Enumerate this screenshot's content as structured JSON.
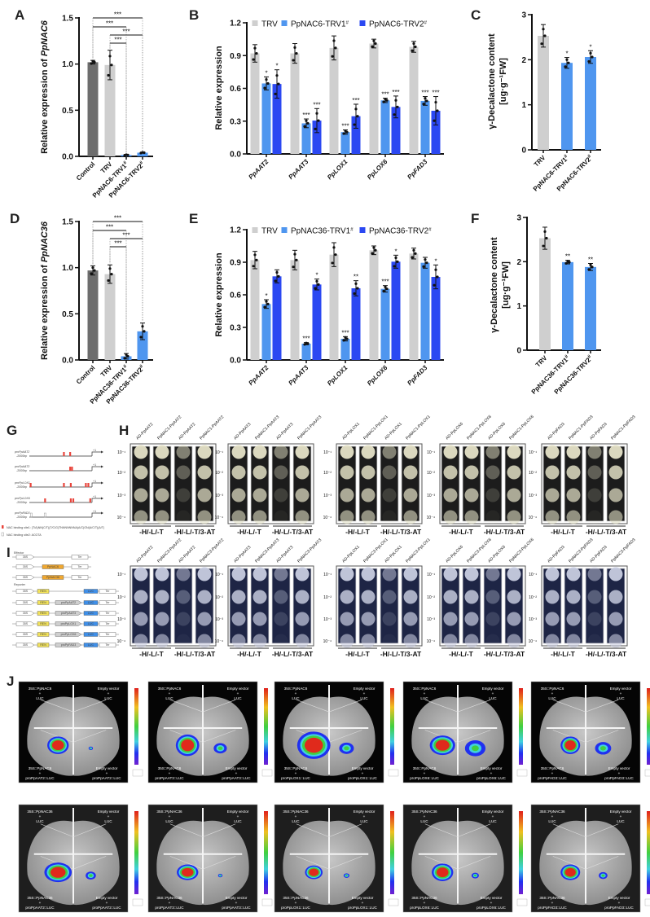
{
  "panel_labels": {
    "A": "A",
    "B": "B",
    "C": "C",
    "D": "D",
    "E": "E",
    "F": "F",
    "G": "G",
    "H": "H",
    "I": "I",
    "J": "J"
  },
  "colors": {
    "control": "#6d6d6d",
    "trv": "#cfcfcf",
    "trv1": "#4f96ef",
    "trv2": "#2b48f2",
    "site1": "#e8453c",
    "site2": "#999999",
    "effector": "#f0a830",
    "ren": "#f3e35a",
    "luc": "#3f8fe8",
    "promoter": "#cfcfcf"
  },
  "chart_data": [
    {
      "id": "A",
      "type": "bar",
      "ylabel": "Relative expression of ",
      "ylabel_italic": "PpNAC6",
      "ylim": [
        0,
        1.5
      ],
      "yticks": [
        0,
        0.5,
        1.0,
        1.5
      ],
      "ytick_labels": [
        "0.0",
        "0.5",
        "1.0",
        "1.5"
      ],
      "categories": [
        "Control",
        "TRV",
        "PpNAC6-TRV1#",
        "PpNAC6-TRV2#"
      ],
      "values": [
        1.02,
        0.99,
        0.015,
        0.04
      ],
      "errors": [
        0.02,
        0.16,
        0.005,
        0.005
      ],
      "bar_colors": [
        "#6d6d6d",
        "#cfcfcf",
        "#4f96ef",
        "#4f96ef"
      ],
      "comparisons": [
        {
          "from": 0,
          "to": 3,
          "label": "***"
        },
        {
          "from": 0,
          "to": 2,
          "label": "***"
        },
        {
          "from": 1,
          "to": 3,
          "label": "***"
        },
        {
          "from": 1,
          "to": 2,
          "label": "***"
        }
      ]
    },
    {
      "id": "B",
      "type": "bar",
      "ylabel": "Relative expression",
      "ylim": [
        0,
        1.2
      ],
      "yticks": [
        0,
        0.3,
        0.6,
        0.9,
        1.2
      ],
      "ytick_labels": [
        "0.0",
        "0.3",
        "0.6",
        "0.9",
        "1.2"
      ],
      "categories": [
        "PpAAT2",
        "PpAAT3",
        "PpLOX1",
        "PpLOX6",
        "PpFAD3"
      ],
      "legend": "top",
      "series": [
        {
          "name": "TRV",
          "color": "#cfcfcf",
          "values": [
            0.92,
            0.92,
            0.97,
            1.01,
            0.98
          ],
          "errors": [
            0.08,
            0.09,
            0.11,
            0.04,
            0.05
          ],
          "sig": [
            "",
            "",
            "",
            "",
            ""
          ]
        },
        {
          "name": "PpNAC6-TRV1#",
          "color": "#4f96ef",
          "values": [
            0.645,
            0.28,
            0.2,
            0.49,
            0.485
          ],
          "errors": [
            0.06,
            0.04,
            0.02,
            0.02,
            0.04
          ],
          "sig": [
            "*",
            "***",
            "***",
            "***",
            "***"
          ]
        },
        {
          "name": "PpNAC6-TRV2#",
          "color": "#2b48f2",
          "values": [
            0.64,
            0.305,
            0.345,
            0.43,
            0.395
          ],
          "errors": [
            0.13,
            0.11,
            0.11,
            0.1,
            0.13
          ],
          "sig": [
            "*",
            "***",
            "***",
            "***",
            "***"
          ]
        }
      ]
    },
    {
      "id": "C",
      "type": "bar",
      "ylabel": "γ-Decalactone content",
      "ylabel2": "[ug·g⁻¹FW]",
      "ylim": [
        0,
        3
      ],
      "yticks": [
        0,
        1,
        2,
        3
      ],
      "ytick_labels": [
        "0",
        "1",
        "2",
        "3"
      ],
      "categories": [
        "TRV",
        "PpNAC6-TRV1#",
        "PpNAC6-TRV2#"
      ],
      "values": [
        2.53,
        1.93,
        2.06
      ],
      "errors": [
        0.25,
        0.12,
        0.14
      ],
      "sig": [
        "",
        "*",
        "*"
      ],
      "bar_colors": [
        "#cfcfcf",
        "#4f96ef",
        "#4f96ef"
      ]
    },
    {
      "id": "D",
      "type": "bar",
      "ylabel": "Relative expression of ",
      "ylabel_italic": "PpNAC36",
      "ylim": [
        0,
        1.5
      ],
      "yticks": [
        0,
        0.5,
        1.0,
        1.5
      ],
      "ytick_labels": [
        "0.0",
        "0.5",
        "1.0",
        "1.5"
      ],
      "categories": [
        "Control",
        "TRV",
        "PpNAC36-TRV1#",
        "PpNAC36-TRV2#"
      ],
      "values": [
        0.97,
        0.93,
        0.04,
        0.31
      ],
      "errors": [
        0.05,
        0.1,
        0.03,
        0.09
      ],
      "bar_colors": [
        "#6d6d6d",
        "#cfcfcf",
        "#4f96ef",
        "#4f96ef"
      ],
      "comparisons": [
        {
          "from": 0,
          "to": 3,
          "label": "***"
        },
        {
          "from": 0,
          "to": 2,
          "label": "***"
        },
        {
          "from": 1,
          "to": 3,
          "label": "***"
        },
        {
          "from": 1,
          "to": 2,
          "label": "***"
        }
      ]
    },
    {
      "id": "E",
      "type": "bar",
      "ylabel": "Relative expression",
      "ylim": [
        0,
        1.2
      ],
      "yticks": [
        0,
        0.3,
        0.6,
        0.9,
        1.2
      ],
      "ytick_labels": [
        "0.0",
        "0.3",
        "0.6",
        "0.9",
        "1.2"
      ],
      "categories": [
        "PpAAT2",
        "PpAAT3",
        "PpLOX1",
        "PpLOX6",
        "PpFAD3"
      ],
      "legend": "top",
      "series": [
        {
          "name": "TRV",
          "color": "#cfcfcf",
          "values": [
            0.92,
            0.92,
            0.97,
            1.01,
            0.98
          ],
          "errors": [
            0.08,
            0.09,
            0.11,
            0.04,
            0.05
          ],
          "sig": [
            "",
            "",
            "",
            "",
            ""
          ]
        },
        {
          "name": "PpNAC36-TRV1#",
          "color": "#4f96ef",
          "values": [
            0.515,
            0.15,
            0.195,
            0.655,
            0.895
          ],
          "errors": [
            0.04,
            0.01,
            0.02,
            0.03,
            0.05
          ],
          "sig": [
            "*",
            "***",
            "***",
            "***",
            ""
          ]
        },
        {
          "name": "PpNAC36-TRV2#",
          "color": "#2b48f2",
          "values": [
            0.77,
            0.695,
            0.66,
            0.905,
            0.765
          ],
          "errors": [
            0.06,
            0.05,
            0.07,
            0.06,
            0.11
          ],
          "sig": [
            "",
            "*",
            "**",
            "*",
            "*"
          ]
        }
      ]
    },
    {
      "id": "F",
      "type": "bar",
      "ylabel": "γ-Decalactone content",
      "ylabel2": "[ug·g⁻¹FW]",
      "ylim": [
        0,
        3
      ],
      "yticks": [
        0,
        1,
        2,
        3
      ],
      "ytick_labels": [
        "0",
        "1",
        "2",
        "3"
      ],
      "categories": [
        "TRV",
        "PpNAC36-TRV1#",
        "PpNAC36-TRV2#"
      ],
      "values": [
        2.53,
        1.99,
        1.88
      ],
      "errors": [
        0.25,
        0.04,
        0.08
      ],
      "sig": [
        "",
        "**",
        "**"
      ],
      "bar_colors": [
        "#cfcfcf",
        "#4f96ef",
        "#4f96ef"
      ]
    }
  ],
  "G": {
    "constructs": [
      {
        "name": "proPpAAT2",
        "length": "-2000bp",
        "site1": [
          0.55,
          0.65
        ],
        "site2": []
      },
      {
        "name": "proPpAAT3",
        "length": "-2000bp",
        "site1": [
          0.65,
          0.68
        ],
        "site2": []
      },
      {
        "name": "proPpLOX1",
        "length": "-2000bp",
        "site1": [
          0.02,
          0.55,
          0.66,
          0.9,
          0.94
        ],
        "site2": []
      },
      {
        "name": "proPpLOX6",
        "length": "-2000bp",
        "site1": [
          0.25,
          0.66,
          0.7,
          0.97
        ],
        "site2": []
      },
      {
        "name": "proPpFAD3",
        "length": "-2000bp",
        "site1": [],
        "site2": [
          0.03,
          0.25
        ]
      }
    ],
    "tss": "+1",
    "legend": [
      "NAC binding site1: (T/A)NN(C/T)(T/C/G)TNNNNNNNA(A/C)GN(A/C/T)(A/T)",
      "NAC binding site2: ACGTA"
    ]
  },
  "H": {
    "dilutions": [
      "10⁻¹",
      "10⁻²",
      "10⁻³",
      "10⁻⁴"
    ],
    "media": [
      "-H/-L/-T",
      "-H/-L/-T/3-AT"
    ],
    "rows": [
      {
        "genes": [
          [
            "AD-PpAAT2",
            "PpNAC1-PpAAT2",
            "AD-PpAAT2",
            "PpNAC1-PpAAT2"
          ],
          [
            "AD-PpAAT3",
            "PpNAC1-PpAAT3",
            "AD-PpAAT3",
            "PpNAC1-PpAAT3"
          ],
          [
            "AD-PpLOX1",
            "PpNAC1-PpLOX1",
            "AD-PpLOX1",
            "PpNAC1-PpLOX1"
          ],
          [
            "AD-PpLOX6",
            "PpNAC1-PpLOX6",
            "AD-PpLOX6",
            "PpNAC1-PpLOX6"
          ],
          [
            "AD-PpFAD3",
            "PpNAC1-PpFAD3",
            "AD-PpFAD3",
            "PpNAC1-PpFAD3"
          ]
        ]
      },
      {
        "genes": [
          [
            "AD-PpAAT2",
            "PpNAC3-PpAAT2",
            "AD-PpAAT2",
            "PpNAC3-PpAAT2"
          ],
          [
            "AD-PpAAT3",
            "PpNAC3-PpAAT3",
            "AD-PpAAT3",
            "PpNAC3-PpAAT3"
          ],
          [
            "AD-PpLOX1",
            "PpNAC3-PpLOX1",
            "AD-PpLOX1",
            "PpNAC3-PpLOX1"
          ],
          [
            "AD-PpLOX6",
            "PpNAC3-PpLOX6",
            "AD-PpLOX6",
            "PpNAC3-PpLOX6"
          ],
          [
            "AD-PpFAD3",
            "PpNAC3-PpFAD3",
            "AD-PpFAD3",
            "PpNAC3-PpFAD3"
          ]
        ]
      }
    ]
  },
  "I": {
    "effector_label": "Effector",
    "reporter_label": "Reporter",
    "effectors": [
      [
        "35S",
        "",
        "Ter"
      ],
      [
        "35S",
        "PpNAC6",
        "Ter"
      ],
      [
        "35S",
        "PpNAC36",
        "Ter"
      ]
    ],
    "reporters": [
      [
        "35S",
        "REN",
        "",
        "LUC",
        "Ter"
      ],
      [
        "35S",
        "REN",
        "proPpAAT2",
        "LUC",
        "Ter"
      ],
      [
        "35S",
        "REN",
        "proPpAAT3",
        "LUC",
        "Ter"
      ],
      [
        "35S",
        "REN",
        "proPpLOX1",
        "LUC",
        "Ter"
      ],
      [
        "35S",
        "REN",
        "proPpLOX6",
        "LUC",
        "Ter"
      ],
      [
        "35S",
        "REN",
        "proPpFAD3",
        "LUC",
        "Ter"
      ]
    ]
  },
  "J": {
    "rows": [
      {
        "effector": "35S::PpNAC6",
        "leaves": [
          "proPpAAT2::LUC",
          "proPpAAT3::LUC",
          "proPpLOX1::LUC",
          "proPpLOX6::LUC",
          "proPpFAD3::LUC"
        ]
      },
      {
        "effector": "35S::PpNAC36",
        "leaves": [
          "proPpAAT2::LUC",
          "proPpAAT3::LUC",
          "proPpLOX1::LUC",
          "proPpLOX6::LUC",
          "proPpFAD3::LUC"
        ]
      }
    ],
    "empty_vector": "Empty vector",
    "plus": "+",
    "luc": "LUC"
  }
}
